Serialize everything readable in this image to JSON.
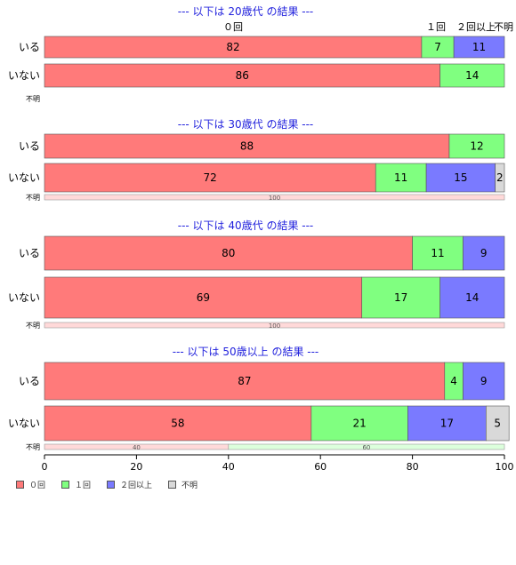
{
  "chart_data": {
    "type": "bar",
    "orientation": "horizontal-stacked-100",
    "xlim": [
      0,
      100
    ],
    "xticks": [
      "0",
      "20",
      "40",
      "60",
      "80",
      "100"
    ],
    "header_labels": [
      "０回",
      "１回",
      "２回以上",
      "不明"
    ],
    "groups": [
      {
        "title": "--- 以下は 20歳代 の結果 ---",
        "rows": [
          {
            "label": "いる",
            "values": [
              82,
              7,
              11,
              0
            ],
            "labels": [
              "82",
              "7",
              "11",
              ""
            ]
          },
          {
            "label": "いない",
            "values": [
              86,
              14,
              0,
              0
            ],
            "labels": [
              "86",
              "14",
              "",
              ""
            ]
          }
        ],
        "unknown": {
          "label": "不明",
          "values": [],
          "labels": []
        }
      },
      {
        "title": "--- 以下は 30歳代 の結果 ---",
        "rows": [
          {
            "label": "いる",
            "values": [
              88,
              12,
              0,
              0
            ],
            "labels": [
              "88",
              "12",
              "",
              ""
            ]
          },
          {
            "label": "いない",
            "values": [
              72,
              11,
              15,
              2
            ],
            "labels": [
              "72",
              "11",
              "15",
              "2"
            ]
          }
        ],
        "unknown": {
          "label": "不明",
          "values": [
            100
          ],
          "labels": [
            "100"
          ]
        }
      },
      {
        "title": "--- 以下は 40歳代 の結果 ---",
        "rows": [
          {
            "label": "いる",
            "values": [
              80,
              11,
              9,
              0
            ],
            "labels": [
              "80",
              "11",
              "9",
              ""
            ]
          },
          {
            "label": "いない",
            "values": [
              69,
              17,
              14,
              0
            ],
            "labels": [
              "69",
              "17",
              "14",
              ""
            ]
          }
        ],
        "unknown": {
          "label": "不明",
          "values": [
            100
          ],
          "labels": [
            "100"
          ]
        }
      },
      {
        "title": "--- 以下は 50歳以上 の結果 ---",
        "rows": [
          {
            "label": "いる",
            "values": [
              87,
              4,
              9,
              0
            ],
            "labels": [
              "87",
              "4",
              "9",
              ""
            ]
          },
          {
            "label": "いない",
            "values": [
              58,
              21,
              17,
              5
            ],
            "labels": [
              "58",
              "21",
              "17",
              "5"
            ]
          }
        ],
        "unknown": {
          "label": "不明",
          "values": [
            40,
            60
          ],
          "labels": [
            "40",
            "60"
          ]
        }
      }
    ],
    "series": [
      {
        "name": "０回",
        "color": "#ff7a7a",
        "light": "#ffd9d9"
      },
      {
        "name": "１回",
        "color": "#80ff80",
        "light": "#dcffdc"
      },
      {
        "name": "２回以上",
        "color": "#7a7aff",
        "light": "#dcdcff"
      },
      {
        "name": "不明",
        "color": "#d9d9d9",
        "light": "#f0f0f0"
      }
    ],
    "title_color": "#2222dd",
    "grid": false,
    "legend_position": "bottom-left"
  }
}
